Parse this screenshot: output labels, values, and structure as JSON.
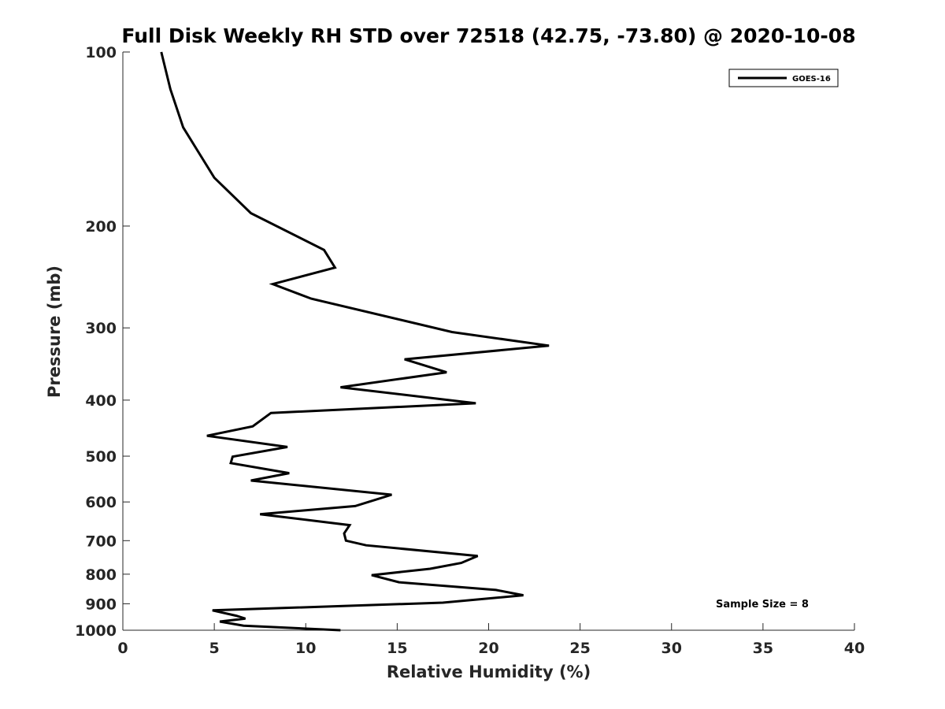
{
  "chart_data": {
    "type": "line",
    "title": "Full Disk Weekly RH STD over 72518 (42.75, -73.80) @ 2020-10-08",
    "xlabel": "Relative Humidity (%)",
    "ylabel": "Pressure (mb)",
    "xlim": [
      0,
      40
    ],
    "ylim": [
      100,
      1000
    ],
    "yscale": "log",
    "y_reversed": true,
    "xticks": [
      0,
      5,
      10,
      15,
      20,
      25,
      30,
      35,
      40
    ],
    "yticks": [
      100,
      200,
      300,
      400,
      500,
      600,
      700,
      800,
      900,
      1000
    ],
    "grid": false,
    "legend_position": "top-right",
    "annotation": "Sample Size = 8",
    "line_color": "#000000",
    "series": [
      {
        "name": "GOES-16",
        "x": [
          2.1,
          2.6,
          3.3,
          5.0,
          7.0,
          11.0,
          11.6,
          8.2,
          10.3,
          18.0,
          23.3,
          15.4,
          17.7,
          11.9,
          19.3,
          8.1,
          7.1,
          4.6,
          9.0,
          6.0,
          5.9,
          9.1,
          7.0,
          14.7,
          12.7,
          7.5,
          12.4,
          12.1,
          12.2,
          13.3,
          19.4,
          18.5,
          16.8,
          13.6,
          15.1,
          20.4,
          21.9,
          17.5,
          4.9,
          6.2,
          6.7,
          5.3,
          6.6,
          11.9
        ],
        "y": [
          100,
          116,
          135,
          165,
          190,
          220,
          236,
          252,
          267,
          305,
          322,
          340,
          358,
          380,
          405,
          421,
          444,
          461,
          482,
          501,
          514,
          535,
          551,
          583,
          610,
          630,
          658,
          680,
          700,
          713,
          744,
          765,
          783,
          803,
          826,
          852,
          870,
          896,
          924,
          944,
          955,
          966,
          982,
          1000
        ]
      }
    ]
  }
}
